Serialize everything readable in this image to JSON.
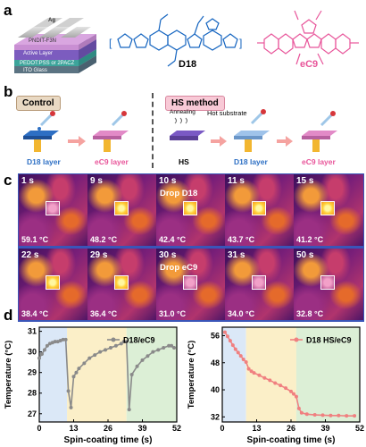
{
  "panels": {
    "a": "a",
    "b": "b",
    "c": "c",
    "d": "d"
  },
  "device_layers": [
    "Ag",
    "PNDIT-F3N",
    "Active Layer",
    "PEDOT:PSS or 2PACZ",
    "ITO Glass"
  ],
  "molecules": {
    "donor": "D18",
    "acceptor": "eC9"
  },
  "process": {
    "control_label": "Control",
    "hs_label": "HS method",
    "annealing": "Annealing",
    "hot_substrate": "Hot substrate",
    "steps_control": [
      "D18 layer",
      "eC9 layer"
    ],
    "steps_hs": [
      "HS",
      "D18 layer",
      "eC9 layer"
    ]
  },
  "ir_frames": [
    {
      "time": "1 s",
      "temp": "59.1 °C",
      "note": ""
    },
    {
      "time": "9 s",
      "temp": "48.2 °C",
      "note": ""
    },
    {
      "time": "10 s",
      "temp": "42.4 °C",
      "note": "Drop D18"
    },
    {
      "time": "11 s",
      "temp": "43.7 °C",
      "note": ""
    },
    {
      "time": "15 s",
      "temp": "41.2 °C",
      "note": ""
    },
    {
      "time": "22 s",
      "temp": "38.4 °C",
      "note": ""
    },
    {
      "time": "29 s",
      "temp": "36.4 °C",
      "note": ""
    },
    {
      "time": "30 s",
      "temp": "31.0 °C",
      "note": "Drop eC9"
    },
    {
      "time": "31 s",
      "temp": "34.0 °C",
      "note": ""
    },
    {
      "time": "50 s",
      "temp": "32.8 °C",
      "note": ""
    }
  ],
  "colors": {
    "donor": "#1565c0",
    "acceptor": "#e8559a",
    "ir_border": "#3a55b8",
    "zone_blue": "#dbe8f7",
    "zone_yellow": "#fbefc8",
    "zone_green": "#dcefd6"
  },
  "chart_data": [
    {
      "type": "line",
      "title": "",
      "xlabel": "Spin-coating time (s)",
      "ylabel": "Temperature (°C)",
      "xlim": [
        0,
        52
      ],
      "ylim": [
        26.6,
        31.2
      ],
      "xticks": [
        0,
        13,
        26,
        39,
        52
      ],
      "yticks": [
        27,
        28,
        29,
        30,
        31
      ],
      "legend": "top-right",
      "zones": [
        [
          0,
          10.5,
          "blue"
        ],
        [
          10.5,
          33,
          "yellow"
        ],
        [
          33,
          52,
          "green"
        ]
      ],
      "series": [
        {
          "name": "D18/eC9",
          "color": "#8a8a8a",
          "x": [
            0,
            1,
            2,
            3,
            4,
            5,
            6,
            7,
            8,
            9,
            10,
            11,
            12,
            13,
            14,
            15,
            17,
            19,
            21,
            23,
            25,
            27,
            29,
            31,
            32,
            33,
            34,
            35,
            37,
            39,
            41,
            43,
            45,
            47,
            49,
            50,
            51
          ],
          "y": [
            29.7,
            29.9,
            30.1,
            30.3,
            30.4,
            30.45,
            30.5,
            30.5,
            30.55,
            30.6,
            30.6,
            28.1,
            27.3,
            28.8,
            29.0,
            29.2,
            29.45,
            29.7,
            29.85,
            30.0,
            30.1,
            30.2,
            30.3,
            30.4,
            30.5,
            30.5,
            27.2,
            28.9,
            29.3,
            29.6,
            29.8,
            30.0,
            30.1,
            30.2,
            30.3,
            30.3,
            30.2
          ]
        }
      ]
    },
    {
      "type": "line",
      "title": "",
      "xlabel": "Spin-coating time (s)",
      "ylabel": "Temperature (°C)",
      "xlim": [
        0,
        52
      ],
      "ylim": [
        30.5,
        58.5
      ],
      "xticks": [
        0,
        13,
        26,
        39,
        52
      ],
      "yticks": [
        32,
        40,
        48,
        56
      ],
      "legend": "top-right",
      "zones": [
        [
          0,
          9,
          "blue"
        ],
        [
          9,
          28,
          "yellow"
        ],
        [
          28,
          52,
          "green"
        ]
      ],
      "series": [
        {
          "name": "D18 HS/eC9",
          "color": "#f08080",
          "x": [
            1,
            2,
            3,
            4,
            5,
            6,
            7,
            8,
            9,
            10,
            11,
            12,
            14,
            16,
            18,
            20,
            22,
            24,
            26,
            27,
            28,
            29,
            30,
            32,
            35,
            38,
            41,
            44,
            47,
            50
          ],
          "y": [
            57,
            55.8,
            54.5,
            53.2,
            52,
            51,
            50,
            49,
            48.2,
            46.2,
            45.5,
            45.0,
            44.3,
            43.5,
            42.8,
            42.0,
            41.3,
            40.5,
            39.5,
            38.8,
            38.0,
            34.5,
            33.2,
            32.8,
            32.6,
            32.5,
            32.4,
            32.4,
            32.3,
            32.3
          ]
        }
      ]
    }
  ]
}
